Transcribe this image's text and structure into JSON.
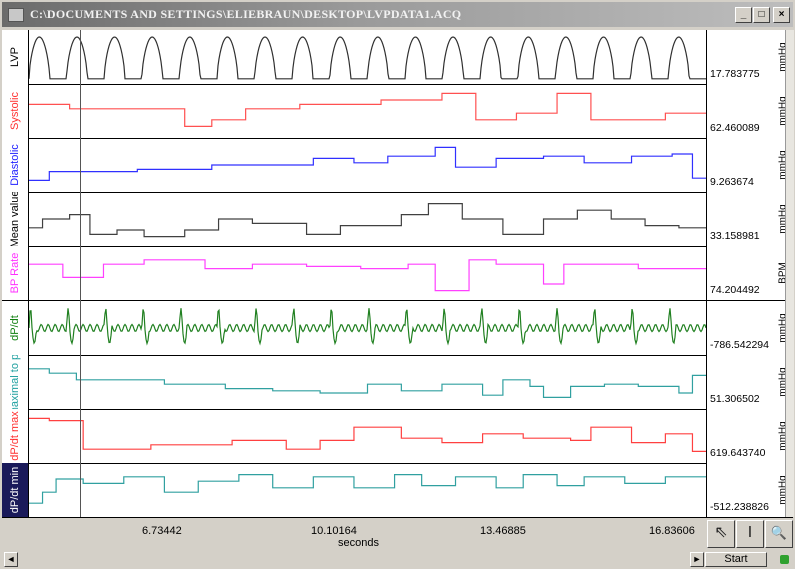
{
  "window": {
    "title": "C:\\DOCUMENTS AND SETTINGS\\ELIEBRAUN\\DESKTOP\\LVPDATA1.ACQ",
    "min": "_",
    "max": "□",
    "close": "×"
  },
  "channels": [
    {
      "label": "LVP",
      "label_color": "#000000",
      "trace_color": "#303030",
      "value": "17.783775",
      "unit": "mmHg",
      "wave": "pulse"
    },
    {
      "label": "Systolic",
      "label_color": "#ff3030",
      "trace_color": "#ff5050",
      "value": "62.460089",
      "unit": "mmHg",
      "wave": "step",
      "steps": [
        [
          0,
          0.35
        ],
        [
          0.06,
          0.45
        ],
        [
          0.23,
          0.85
        ],
        [
          0.27,
          0.7
        ],
        [
          0.32,
          0.45
        ],
        [
          0.4,
          0.35
        ],
        [
          0.52,
          0.25
        ],
        [
          0.61,
          0.1
        ],
        [
          0.66,
          0.7
        ],
        [
          0.72,
          0.55
        ],
        [
          0.78,
          0.1
        ],
        [
          0.83,
          0.7
        ],
        [
          0.94,
          0.55
        ],
        [
          1,
          0.55
        ]
      ]
    },
    {
      "label": "Diastolic",
      "label_color": "#2020ff",
      "trace_color": "#3030ff",
      "value": "9.263674",
      "unit": "mmHg",
      "wave": "step",
      "steps": [
        [
          0,
          0.85
        ],
        [
          0.03,
          0.65
        ],
        [
          0.16,
          0.6
        ],
        [
          0.27,
          0.5
        ],
        [
          0.36,
          0.5
        ],
        [
          0.42,
          0.35
        ],
        [
          0.48,
          0.45
        ],
        [
          0.53,
          0.3
        ],
        [
          0.6,
          0.1
        ],
        [
          0.63,
          0.55
        ],
        [
          0.69,
          0.35
        ],
        [
          0.76,
          0.3
        ],
        [
          0.82,
          0.45
        ],
        [
          0.89,
          0.3
        ],
        [
          0.95,
          0.25
        ],
        [
          0.98,
          0.8
        ],
        [
          1,
          0.8
        ]
      ]
    },
    {
      "label": "Mean value",
      "label_color": "#000000",
      "trace_color": "#404040",
      "value": "33.158981",
      "unit": "mmHg",
      "wave": "step",
      "steps": [
        [
          0,
          0.7
        ],
        [
          0.02,
          0.5
        ],
        [
          0.06,
          0.4
        ],
        [
          0.09,
          0.85
        ],
        [
          0.13,
          0.75
        ],
        [
          0.17,
          0.9
        ],
        [
          0.23,
          0.75
        ],
        [
          0.28,
          0.5
        ],
        [
          0.33,
          0.6
        ],
        [
          0.41,
          0.85
        ],
        [
          0.46,
          0.65
        ],
        [
          0.55,
          0.4
        ],
        [
          0.59,
          0.15
        ],
        [
          0.64,
          0.5
        ],
        [
          0.7,
          0.85
        ],
        [
          0.76,
          0.5
        ],
        [
          0.81,
          0.3
        ],
        [
          0.86,
          0.5
        ],
        [
          0.91,
          0.65
        ],
        [
          0.96,
          0.7
        ],
        [
          1,
          0.7
        ]
      ]
    },
    {
      "label": "BP Rate",
      "label_color": "#ff30ff",
      "trace_color": "#ff40ff",
      "value": "74.204492",
      "unit": "BPM",
      "wave": "step",
      "steps": [
        [
          0,
          0.3
        ],
        [
          0.05,
          0.6
        ],
        [
          0.11,
          0.3
        ],
        [
          0.17,
          0.2
        ],
        [
          0.26,
          0.4
        ],
        [
          0.33,
          0.3
        ],
        [
          0.41,
          0.35
        ],
        [
          0.49,
          0.4
        ],
        [
          0.56,
          0.3
        ],
        [
          0.6,
          0.9
        ],
        [
          0.63,
          0.9
        ],
        [
          0.65,
          0.2
        ],
        [
          0.69,
          0.3
        ],
        [
          0.76,
          0.75
        ],
        [
          0.79,
          0.3
        ],
        [
          0.86,
          0.3
        ],
        [
          0.9,
          0.4
        ],
        [
          1,
          0.4
        ]
      ]
    },
    {
      "label": "dP/dt",
      "label_color": "#108010",
      "trace_color": "#208020",
      "value": "-786.542294",
      "unit": "mmHg",
      "wave": "spiky"
    },
    {
      "label": "maximal to pe",
      "label_color": "#20a0a0",
      "trace_color": "#30a0a0",
      "value": "51.306502",
      "unit": "mmHg",
      "wave": "step",
      "steps": [
        [
          0,
          0.2
        ],
        [
          0.03,
          0.3
        ],
        [
          0.07,
          0.45
        ],
        [
          0.2,
          0.55
        ],
        [
          0.29,
          0.65
        ],
        [
          0.36,
          0.7
        ],
        [
          0.43,
          0.75
        ],
        [
          0.5,
          0.55
        ],
        [
          0.55,
          0.7
        ],
        [
          0.61,
          0.55
        ],
        [
          0.67,
          0.8
        ],
        [
          0.7,
          0.45
        ],
        [
          0.74,
          0.6
        ],
        [
          0.76,
          0.85
        ],
        [
          0.8,
          0.6
        ],
        [
          0.85,
          0.55
        ],
        [
          0.9,
          0.6
        ],
        [
          0.96,
          0.75
        ],
        [
          0.98,
          0.35
        ],
        [
          1,
          0.35
        ]
      ]
    },
    {
      "label": "dP/dt max",
      "label_color": "#ff3030",
      "trace_color": "#ff4040",
      "value": "619.643740",
      "unit": "mmHg",
      "wave": "step",
      "steps": [
        [
          0,
          0.1
        ],
        [
          0.03,
          0.15
        ],
        [
          0.08,
          0.8
        ],
        [
          0.18,
          0.7
        ],
        [
          0.3,
          0.6
        ],
        [
          0.38,
          0.8
        ],
        [
          0.43,
          0.6
        ],
        [
          0.48,
          0.3
        ],
        [
          0.55,
          0.55
        ],
        [
          0.61,
          0.65
        ],
        [
          0.67,
          0.45
        ],
        [
          0.73,
          0.55
        ],
        [
          0.8,
          0.6
        ],
        [
          0.83,
          0.3
        ],
        [
          0.89,
          0.65
        ],
        [
          0.94,
          0.45
        ],
        [
          0.98,
          0.85
        ],
        [
          1,
          0.85
        ]
      ]
    },
    {
      "label": "dP/dt min",
      "label_color": "#ffffff",
      "trace_color": "#30a0a0",
      "value": "-512.238826",
      "unit": "mmHg",
      "wave": "step",
      "steps": [
        [
          0,
          0.8
        ],
        [
          0.02,
          0.55
        ],
        [
          0.04,
          0.25
        ],
        [
          0.08,
          0.35
        ],
        [
          0.14,
          0.2
        ],
        [
          0.2,
          0.55
        ],
        [
          0.25,
          0.3
        ],
        [
          0.31,
          0.15
        ],
        [
          0.36,
          0.45
        ],
        [
          0.42,
          0.2
        ],
        [
          0.48,
          0.45
        ],
        [
          0.54,
          0.15
        ],
        [
          0.58,
          0.4
        ],
        [
          0.63,
          0.2
        ],
        [
          0.69,
          0.45
        ],
        [
          0.73,
          0.15
        ],
        [
          0.78,
          0.4
        ],
        [
          0.82,
          0.2
        ],
        [
          0.88,
          0.35
        ],
        [
          0.94,
          0.2
        ],
        [
          1,
          0.2
        ]
      ]
    }
  ],
  "xaxis": {
    "ticks": [
      "6.73442",
      "10.10164",
      "13.46885",
      "16.83606"
    ],
    "label": "seconds"
  },
  "tools": [
    {
      "name": "arrow-tool-icon",
      "glyph": "⇖"
    },
    {
      "name": "ibeam-tool-icon",
      "glyph": "I"
    },
    {
      "name": "zoom-tool-icon",
      "glyph": "🔍"
    }
  ],
  "status": {
    "start_label": "Start",
    "left_arrow": "◄",
    "right_arrow": "►"
  }
}
